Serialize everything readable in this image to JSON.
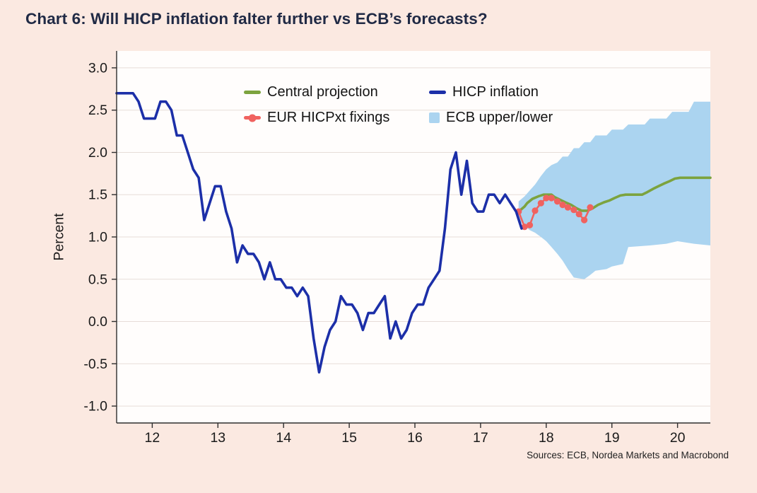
{
  "page": {
    "title": "Chart 6: Will HICP inflation falter further vs ECB’s forecasts?",
    "sources": "Sources: ECB, Nordea Markets and Macrobond"
  },
  "colors": {
    "background": "#fbe9e1",
    "plot_background": "#fffdfc",
    "grid": "#e7ddd8",
    "axis": "#2e2e2e",
    "tick_text": "#1a1a1a",
    "title": "#202a45",
    "hicp_blue": "#1c2fa8",
    "projection_green": "#7ca33e",
    "fixings_red": "#f0625f",
    "band_blue": "#abd4f0"
  },
  "legend": {
    "items": [
      {
        "label": "Central projection",
        "marker": "line",
        "color": "#7ca33e"
      },
      {
        "label": "HICP inflation",
        "marker": "line",
        "color": "#1c2fa8"
      },
      {
        "label": "EUR HICPxt fixings",
        "marker": "line-dot",
        "color": "#f0625f"
      },
      {
        "label": "ECB upper/lower",
        "marker": "square",
        "color": "#abd4f0"
      }
    ]
  },
  "chart_data": {
    "type": "line",
    "title": "Chart 6: Will HICP inflation falter further vs ECB’s forecasts?",
    "xlabel": "",
    "ylabel": "Percent",
    "xlim": [
      11.458,
      20.5
    ],
    "ylim": [
      -1.0,
      3.0
    ],
    "y_pad": 0.2,
    "grid": "horizontal",
    "legend_position": "top-center-inside",
    "x_ticks": [
      12,
      13,
      14,
      15,
      16,
      17,
      18,
      19,
      20
    ],
    "x_tick_labels": [
      "12",
      "13",
      "14",
      "15",
      "16",
      "17",
      "18",
      "19",
      "20"
    ],
    "y_ticks": [
      3.0,
      2.5,
      2.0,
      1.5,
      1.0,
      0.5,
      0.0,
      -0.5,
      -1.0
    ],
    "y_tick_labels": [
      "3.0",
      "2.5",
      "2.0",
      "1.5",
      "1.0",
      "0.5",
      "0.0",
      "-0.5",
      "-1.0"
    ],
    "band": {
      "name": "ECB upper/lower",
      "color": "#abd4f0",
      "upper": [
        [
          17.58,
          1.42
        ],
        [
          17.67,
          1.48
        ],
        [
          17.75,
          1.55
        ],
        [
          17.83,
          1.62
        ],
        [
          17.92,
          1.72
        ],
        [
          18.0,
          1.8
        ],
        [
          18.08,
          1.85
        ],
        [
          18.17,
          1.88
        ],
        [
          18.25,
          1.95
        ],
        [
          18.33,
          1.95
        ],
        [
          18.42,
          2.05
        ],
        [
          18.5,
          2.05
        ],
        [
          18.58,
          2.12
        ],
        [
          18.67,
          2.12
        ],
        [
          18.75,
          2.2
        ],
        [
          18.92,
          2.2
        ],
        [
          19.0,
          2.27
        ],
        [
          19.17,
          2.27
        ],
        [
          19.25,
          2.33
        ],
        [
          19.5,
          2.33
        ],
        [
          19.58,
          2.4
        ],
        [
          19.83,
          2.4
        ],
        [
          19.92,
          2.48
        ],
        [
          20.17,
          2.48
        ],
        [
          20.25,
          2.6
        ],
        [
          20.5,
          2.6
        ]
      ],
      "lower": [
        [
          17.58,
          1.2
        ],
        [
          17.67,
          1.13
        ],
        [
          17.75,
          1.08
        ],
        [
          17.83,
          1.05
        ],
        [
          17.92,
          1.0
        ],
        [
          18.0,
          0.95
        ],
        [
          18.08,
          0.88
        ],
        [
          18.17,
          0.8
        ],
        [
          18.25,
          0.72
        ],
        [
          18.33,
          0.62
        ],
        [
          18.42,
          0.52
        ],
        [
          18.58,
          0.5
        ],
        [
          18.67,
          0.55
        ],
        [
          18.75,
          0.6
        ],
        [
          18.92,
          0.62
        ],
        [
          19.0,
          0.65
        ],
        [
          19.17,
          0.68
        ],
        [
          19.25,
          0.88
        ],
        [
          19.58,
          0.9
        ],
        [
          19.83,
          0.92
        ],
        [
          20.0,
          0.95
        ],
        [
          20.25,
          0.92
        ],
        [
          20.5,
          0.9
        ]
      ]
    },
    "series": [
      {
        "name": "Central projection",
        "color": "#7ca33e",
        "type": "line",
        "width": 3.6,
        "markers": false,
        "points": [
          [
            17.58,
            1.3
          ],
          [
            17.67,
            1.36
          ],
          [
            17.71,
            1.4
          ],
          [
            17.79,
            1.45
          ],
          [
            17.88,
            1.48
          ],
          [
            17.96,
            1.5
          ],
          [
            18.08,
            1.5
          ],
          [
            18.13,
            1.47
          ],
          [
            18.21,
            1.44
          ],
          [
            18.29,
            1.41
          ],
          [
            18.38,
            1.38
          ],
          [
            18.46,
            1.34
          ],
          [
            18.54,
            1.31
          ],
          [
            18.63,
            1.31
          ],
          [
            18.71,
            1.34
          ],
          [
            18.79,
            1.38
          ],
          [
            18.88,
            1.41
          ],
          [
            18.96,
            1.43
          ],
          [
            19.04,
            1.46
          ],
          [
            19.13,
            1.49
          ],
          [
            19.21,
            1.5
          ],
          [
            19.46,
            1.5
          ],
          [
            19.54,
            1.53
          ],
          [
            19.63,
            1.57
          ],
          [
            19.71,
            1.6
          ],
          [
            19.79,
            1.63
          ],
          [
            19.88,
            1.66
          ],
          [
            19.96,
            1.69
          ],
          [
            20.04,
            1.7
          ],
          [
            20.5,
            1.7
          ]
        ]
      },
      {
        "name": "EUR HICPxt fixings",
        "color": "#f0625f",
        "type": "line",
        "width": 2.6,
        "markers": true,
        "marker_radius": 4.6,
        "points": [
          [
            17.58,
            1.3
          ],
          [
            17.67,
            1.12
          ],
          [
            17.75,
            1.14
          ],
          [
            17.83,
            1.31
          ],
          [
            17.92,
            1.4
          ],
          [
            18.0,
            1.46
          ],
          [
            18.08,
            1.46
          ],
          [
            18.17,
            1.42
          ],
          [
            18.25,
            1.38
          ],
          [
            18.33,
            1.35
          ],
          [
            18.42,
            1.32
          ],
          [
            18.5,
            1.27
          ],
          [
            18.58,
            1.2
          ],
          [
            18.67,
            1.35
          ]
        ]
      },
      {
        "name": "HICP inflation",
        "color": "#1c2fa8",
        "type": "line",
        "width": 3.6,
        "markers": false,
        "points": [
          [
            11.458,
            2.7
          ],
          [
            11.542,
            2.7
          ],
          [
            11.625,
            2.7
          ],
          [
            11.708,
            2.7
          ],
          [
            11.792,
            2.6
          ],
          [
            11.875,
            2.4
          ],
          [
            11.958,
            2.4
          ],
          [
            12.042,
            2.4
          ],
          [
            12.125,
            2.6
          ],
          [
            12.208,
            2.6
          ],
          [
            12.292,
            2.5
          ],
          [
            12.375,
            2.2
          ],
          [
            12.458,
            2.2
          ],
          [
            12.542,
            2.0
          ],
          [
            12.625,
            1.8
          ],
          [
            12.708,
            1.7
          ],
          [
            12.792,
            1.2
          ],
          [
            12.875,
            1.4
          ],
          [
            12.958,
            1.6
          ],
          [
            13.042,
            1.6
          ],
          [
            13.125,
            1.3
          ],
          [
            13.208,
            1.1
          ],
          [
            13.292,
            0.7
          ],
          [
            13.375,
            0.9
          ],
          [
            13.458,
            0.8
          ],
          [
            13.542,
            0.8
          ],
          [
            13.625,
            0.7
          ],
          [
            13.708,
            0.5
          ],
          [
            13.792,
            0.7
          ],
          [
            13.875,
            0.5
          ],
          [
            13.958,
            0.5
          ],
          [
            14.042,
            0.4
          ],
          [
            14.125,
            0.4
          ],
          [
            14.208,
            0.3
          ],
          [
            14.292,
            0.4
          ],
          [
            14.375,
            0.3
          ],
          [
            14.458,
            -0.2
          ],
          [
            14.542,
            -0.6
          ],
          [
            14.625,
            -0.3
          ],
          [
            14.708,
            -0.1
          ],
          [
            14.792,
            0.0
          ],
          [
            14.875,
            0.3
          ],
          [
            14.958,
            0.2
          ],
          [
            15.042,
            0.2
          ],
          [
            15.125,
            0.1
          ],
          [
            15.208,
            -0.1
          ],
          [
            15.292,
            0.1
          ],
          [
            15.375,
            0.1
          ],
          [
            15.458,
            0.2
          ],
          [
            15.542,
            0.3
          ],
          [
            15.625,
            -0.2
          ],
          [
            15.708,
            0.0
          ],
          [
            15.792,
            -0.2
          ],
          [
            15.875,
            -0.1
          ],
          [
            15.958,
            0.1
          ],
          [
            16.042,
            0.2
          ],
          [
            16.125,
            0.2
          ],
          [
            16.208,
            0.4
          ],
          [
            16.292,
            0.5
          ],
          [
            16.375,
            0.6
          ],
          [
            16.458,
            1.1
          ],
          [
            16.542,
            1.8
          ],
          [
            16.625,
            2.0
          ],
          [
            16.708,
            1.5
          ],
          [
            16.792,
            1.9
          ],
          [
            16.875,
            1.4
          ],
          [
            16.958,
            1.3
          ],
          [
            17.042,
            1.3
          ],
          [
            17.125,
            1.5
          ],
          [
            17.208,
            1.5
          ],
          [
            17.292,
            1.4
          ],
          [
            17.375,
            1.5
          ],
          [
            17.458,
            1.4
          ],
          [
            17.542,
            1.3
          ],
          [
            17.625,
            1.1
          ]
        ]
      }
    ]
  }
}
